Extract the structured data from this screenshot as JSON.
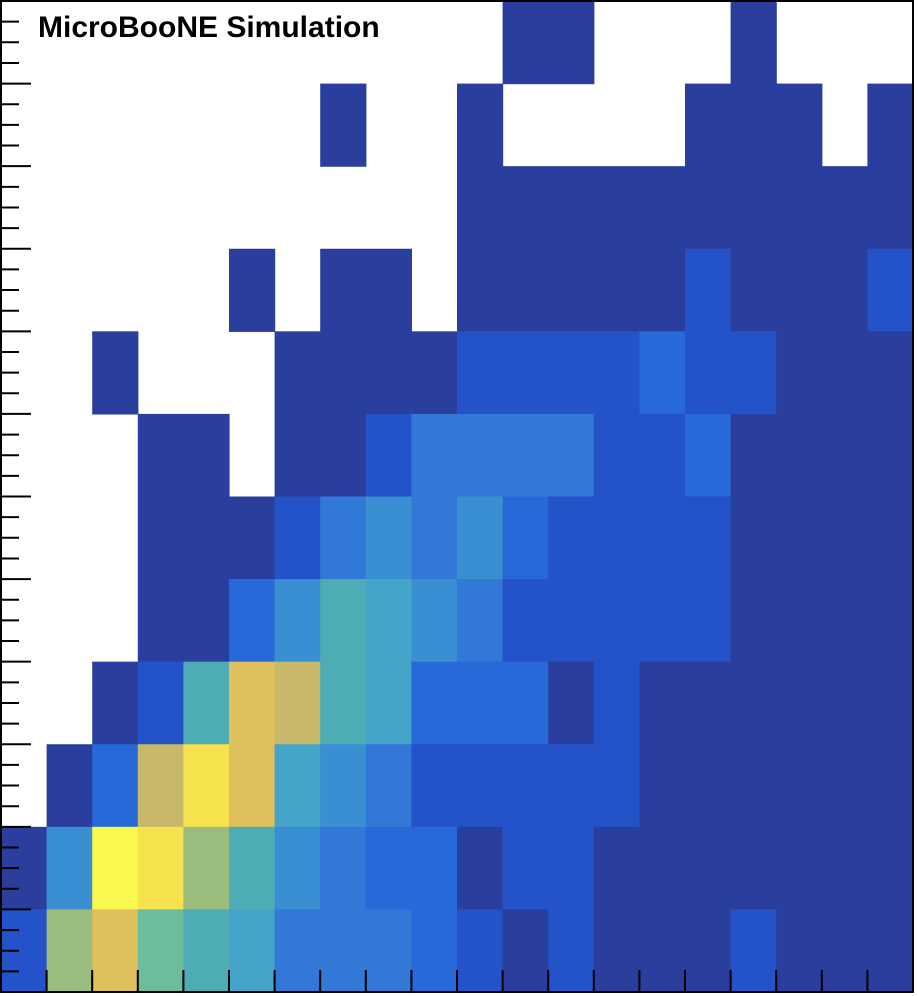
{
  "chart_data": {
    "type": "heatmap",
    "annotation": "MicroBooNE Simulation",
    "xlabel": "",
    "ylabel": "",
    "n_cols": 20,
    "n_rows": 12,
    "palette": [
      "#2a3f9d",
      "#2452c8",
      "#2769d9",
      "#3278d6",
      "#3a8ed2",
      "#45a4c9",
      "#4eadb4",
      "#6bbd9b",
      "#9abc7c",
      "#c8b96a",
      "#dfc05c",
      "#f5e24c",
      "#f9f84e"
    ],
    "grid_rows_top_to_bottom": [
      [
        null,
        null,
        null,
        null,
        null,
        null,
        null,
        null,
        null,
        null,
        null,
        0,
        0,
        null,
        null,
        null,
        0,
        null,
        null,
        null
      ],
      [
        null,
        null,
        null,
        null,
        null,
        null,
        null,
        0,
        null,
        null,
        0,
        null,
        null,
        null,
        null,
        0,
        0,
        0,
        null,
        0
      ],
      [
        null,
        null,
        null,
        null,
        null,
        null,
        null,
        null,
        null,
        null,
        0,
        0,
        0,
        0,
        0,
        0,
        0,
        0,
        0,
        0
      ],
      [
        null,
        null,
        null,
        null,
        null,
        0,
        null,
        0,
        0,
        null,
        0,
        0,
        0,
        0,
        0,
        1,
        0,
        0,
        0,
        1
      ],
      [
        null,
        null,
        0,
        null,
        null,
        null,
        0,
        0,
        0,
        0,
        1,
        1,
        1,
        1,
        2,
        1,
        1,
        0,
        0,
        0
      ],
      [
        null,
        null,
        null,
        0,
        0,
        null,
        0,
        0,
        1,
        3,
        3,
        3,
        3,
        1,
        1,
        2,
        0,
        0,
        0,
        0
      ],
      [
        null,
        null,
        null,
        0,
        0,
        0,
        1,
        3,
        4,
        3,
        4,
        2,
        1,
        1,
        1,
        1,
        0,
        0,
        0,
        0
      ],
      [
        null,
        null,
        null,
        0,
        0,
        2,
        4,
        6,
        5,
        4,
        3,
        1,
        1,
        1,
        1,
        1,
        0,
        0,
        0,
        0
      ],
      [
        null,
        null,
        0,
        1,
        6,
        10,
        9,
        6,
        5,
        2,
        2,
        2,
        0,
        1,
        0,
        0,
        0,
        0,
        0,
        0
      ],
      [
        null,
        0,
        2,
        9,
        11,
        10,
        5,
        4,
        3,
        1,
        1,
        1,
        1,
        1,
        0,
        0,
        0,
        0,
        0,
        0
      ],
      [
        0,
        4,
        12,
        11,
        8,
        6,
        4,
        3,
        2,
        2,
        0,
        1,
        1,
        0,
        0,
        0,
        0,
        0,
        0,
        0
      ],
      [
        1,
        8,
        10,
        7,
        6,
        5,
        3,
        3,
        3,
        2,
        1,
        0,
        1,
        0,
        0,
        0,
        1,
        0,
        0,
        0
      ]
    ]
  }
}
